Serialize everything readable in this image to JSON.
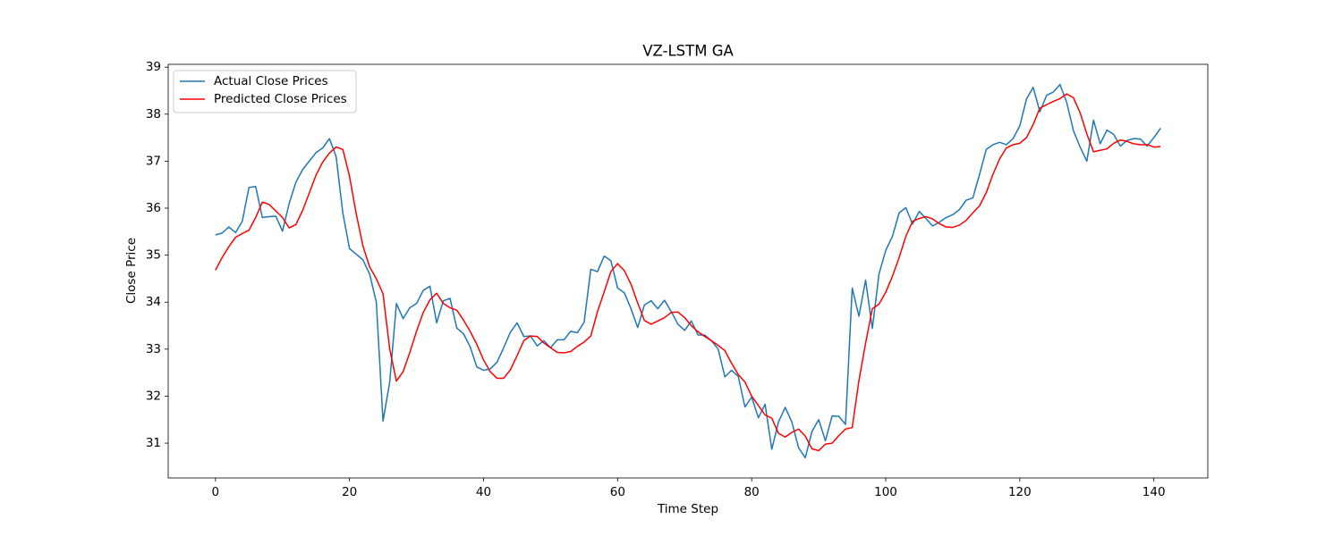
{
  "chart_data": {
    "type": "line",
    "title": "VZ-LSTM GA",
    "x_label": "Time Step",
    "y_label": "Close Price",
    "x": [
      0,
      1,
      2,
      3,
      4,
      5,
      6,
      7,
      8,
      9,
      10,
      11,
      12,
      13,
      14,
      15,
      16,
      17,
      18,
      19,
      20,
      21,
      22,
      23,
      24,
      25,
      26,
      27,
      28,
      29,
      30,
      31,
      32,
      33,
      34,
      35,
      36,
      37,
      38,
      39,
      40,
      41,
      42,
      43,
      44,
      45,
      46,
      47,
      48,
      49,
      50,
      51,
      52,
      53,
      54,
      55,
      56,
      57,
      58,
      59,
      60,
      61,
      62,
      63,
      64,
      65,
      66,
      67,
      68,
      69,
      70,
      71,
      72,
      73,
      74,
      75,
      76,
      77,
      78,
      79,
      80,
      81,
      82,
      83,
      84,
      85,
      86,
      87,
      88,
      89,
      90,
      91,
      92,
      93,
      94,
      95,
      96,
      97,
      98,
      99,
      100,
      101,
      102,
      103,
      104,
      105,
      106,
      107,
      108,
      109,
      110,
      111,
      112,
      113,
      114,
      115,
      116,
      117,
      118,
      119,
      120,
      121,
      122,
      123,
      124,
      125,
      126,
      127,
      128,
      129,
      130,
      131,
      132,
      133,
      134,
      135,
      136,
      137,
      138,
      139,
      140,
      141
    ],
    "series": [
      {
        "name": "Actual Close Prices",
        "color": "#1f77b4",
        "values": [
          35.43,
          35.47,
          35.6,
          35.48,
          35.72,
          36.44,
          36.46,
          35.8,
          35.82,
          35.83,
          35.51,
          36.1,
          36.55,
          36.82,
          37.0,
          37.18,
          37.28,
          37.48,
          37.1,
          35.9,
          35.14,
          35.02,
          34.9,
          34.6,
          34.0,
          31.47,
          32.3,
          33.97,
          33.65,
          33.88,
          33.97,
          34.25,
          34.34,
          33.56,
          34.03,
          34.08,
          33.45,
          33.33,
          33.05,
          32.62,
          32.55,
          32.58,
          32.72,
          33.03,
          33.36,
          33.56,
          33.27,
          33.28,
          33.07,
          33.18,
          33.03,
          33.2,
          33.2,
          33.38,
          33.35,
          33.57,
          34.7,
          34.65,
          34.98,
          34.88,
          34.3,
          34.2,
          33.86,
          33.46,
          33.94,
          34.03,
          33.86,
          34.04,
          33.8,
          33.53,
          33.4,
          33.6,
          33.3,
          33.3,
          33.18,
          33.0,
          32.41,
          32.55,
          32.42,
          31.77,
          31.98,
          31.54,
          31.83,
          30.87,
          31.45,
          31.76,
          31.45,
          30.9,
          30.69,
          31.25,
          31.5,
          31.05,
          31.58,
          31.57,
          31.4,
          34.3,
          33.7,
          34.47,
          33.44,
          34.6,
          35.1,
          35.4,
          35.9,
          36.01,
          35.66,
          35.93,
          35.78,
          35.62,
          35.7,
          35.8,
          35.86,
          35.97,
          36.17,
          36.22,
          36.72,
          37.25,
          37.35,
          37.4,
          37.35,
          37.48,
          37.75,
          38.32,
          38.57,
          38.05,
          38.4,
          38.47,
          38.63,
          38.25,
          37.65,
          37.3,
          37.0,
          37.87,
          37.37,
          37.66,
          37.57,
          37.32,
          37.44,
          37.48,
          37.47,
          37.32,
          37.5,
          37.7
        ]
      },
      {
        "name": "Predicted Close Prices",
        "color": "#ff0000",
        "values": [
          34.68,
          34.95,
          35.18,
          35.38,
          35.46,
          35.53,
          35.8,
          36.13,
          36.08,
          35.94,
          35.8,
          35.58,
          35.65,
          35.95,
          36.32,
          36.7,
          36.98,
          37.17,
          37.3,
          37.25,
          36.68,
          35.88,
          35.2,
          34.75,
          34.5,
          34.18,
          33.0,
          32.32,
          32.52,
          32.93,
          33.38,
          33.78,
          34.05,
          34.19,
          33.97,
          33.88,
          33.83,
          33.62,
          33.38,
          33.1,
          32.77,
          32.52,
          32.38,
          32.38,
          32.56,
          32.86,
          33.18,
          33.28,
          33.27,
          33.13,
          33.03,
          32.93,
          32.92,
          32.95,
          33.06,
          33.15,
          33.28,
          33.8,
          34.22,
          34.65,
          34.82,
          34.67,
          34.38,
          33.98,
          33.61,
          33.53,
          33.6,
          33.67,
          33.78,
          33.79,
          33.67,
          33.5,
          33.37,
          33.27,
          33.18,
          33.08,
          32.97,
          32.7,
          32.46,
          32.3,
          32.0,
          31.8,
          31.6,
          31.53,
          31.21,
          31.13,
          31.23,
          31.3,
          31.15,
          30.88,
          30.84,
          30.98,
          31.0,
          31.16,
          31.3,
          31.33,
          32.33,
          33.13,
          33.86,
          33.96,
          34.21,
          34.55,
          34.95,
          35.4,
          35.72,
          35.78,
          35.82,
          35.77,
          35.67,
          35.6,
          35.59,
          35.64,
          35.74,
          35.9,
          36.05,
          36.33,
          36.72,
          37.05,
          37.28,
          37.35,
          37.38,
          37.5,
          37.78,
          38.13,
          38.2,
          38.27,
          38.33,
          38.43,
          38.35,
          38.03,
          37.58,
          37.2,
          37.23,
          37.26,
          37.38,
          37.45,
          37.42,
          37.37,
          37.35,
          37.35,
          37.3,
          37.31
        ]
      }
    ],
    "xlim": [
      -7.05,
      148.05
    ],
    "ylim": [
      30.26,
      39.06
    ],
    "xticks": [
      0,
      20,
      40,
      60,
      80,
      100,
      120,
      140
    ],
    "yticks": [
      31,
      32,
      33,
      34,
      35,
      36,
      37,
      38,
      39
    ],
    "legend": "upper left",
    "grid": false
  }
}
